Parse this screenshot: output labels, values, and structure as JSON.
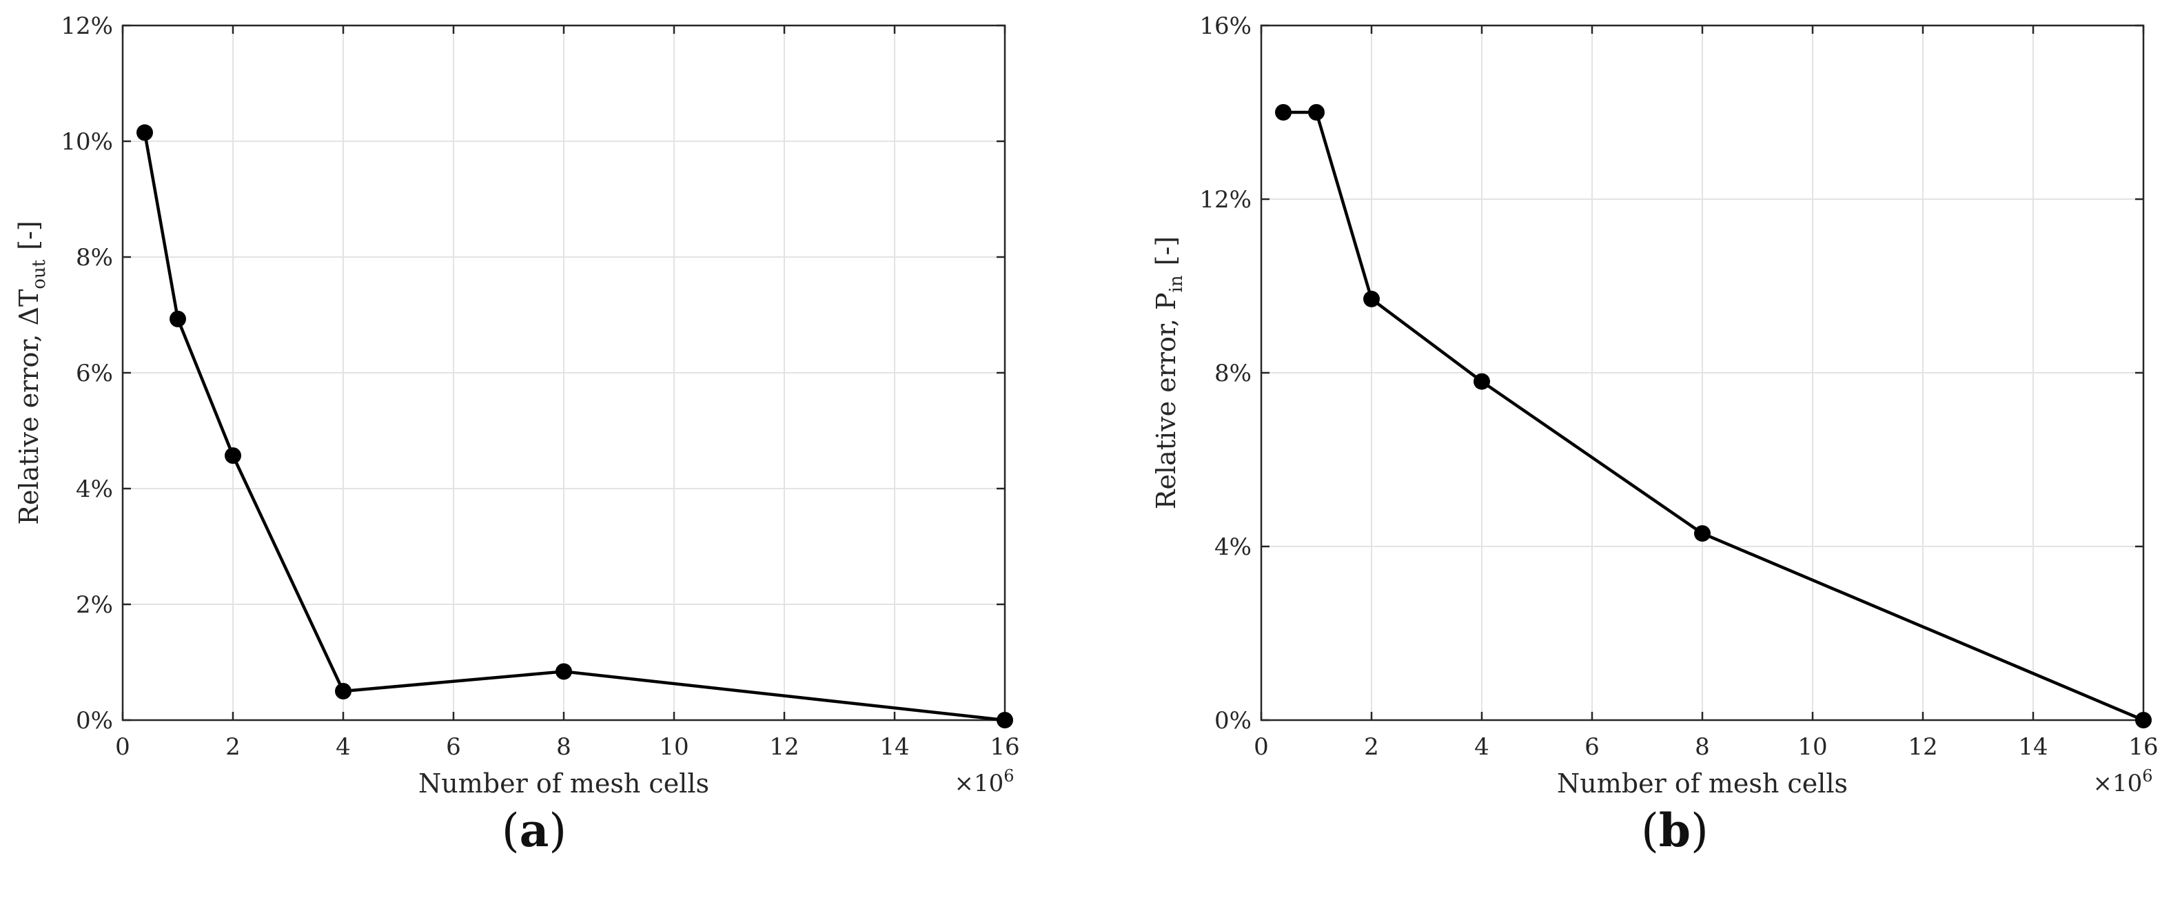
{
  "chart_data": [
    {
      "type": "line",
      "panel_label": "(a)",
      "xlabel": "Number of mesh cells",
      "ylabel_main": "Relative error, ΔT",
      "ylabel_sub": "out",
      "ylabel_unit": "[-]",
      "x_multiplier": "×10",
      "x_multiplier_exp": "6",
      "xlim": [
        0,
        16
      ],
      "ylim": [
        0,
        12
      ],
      "xticks": [
        "0",
        "2",
        "4",
        "6",
        "8",
        "10",
        "12",
        "14",
        "16"
      ],
      "yticks": [
        "0%",
        "2%",
        "4%",
        "6%",
        "8%",
        "10%",
        "12%"
      ],
      "grid": true,
      "series": [
        {
          "x": [
            0.4,
            1,
            2,
            4,
            8,
            16
          ],
          "y": [
            10.15,
            6.93,
            4.57,
            0.5,
            0.84,
            0
          ]
        }
      ]
    },
    {
      "type": "line",
      "panel_label": "(b)",
      "xlabel": "Number of mesh cells",
      "ylabel_main": "Relative error, P",
      "ylabel_sub": "in",
      "ylabel_unit": "[-]",
      "x_multiplier": "×10",
      "x_multiplier_exp": "6",
      "xlim": [
        0,
        16
      ],
      "ylim": [
        0,
        16
      ],
      "xticks": [
        "0",
        "2",
        "4",
        "6",
        "8",
        "10",
        "12",
        "14",
        "16"
      ],
      "yticks": [
        "0%",
        "4%",
        "8%",
        "12%",
        "16%"
      ],
      "grid": true,
      "series": [
        {
          "x": [
            0.4,
            1,
            2,
            4,
            8,
            16
          ],
          "y": [
            14.0,
            14.0,
            9.7,
            7.8,
            4.3,
            0
          ]
        }
      ]
    }
  ]
}
